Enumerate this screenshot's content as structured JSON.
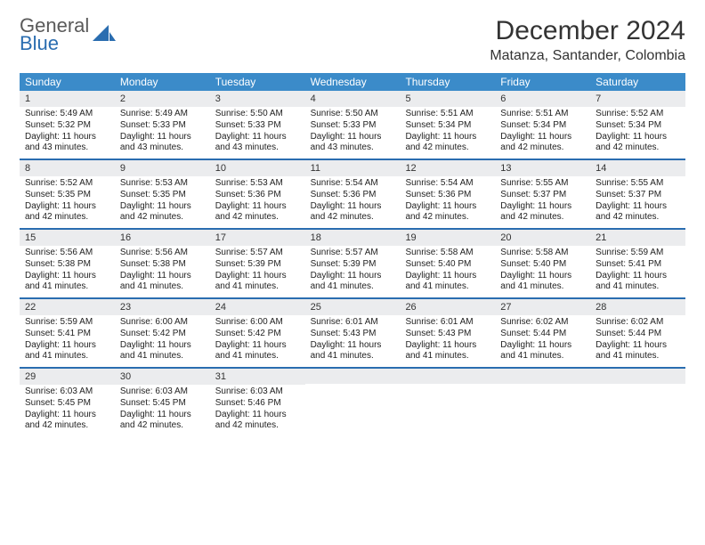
{
  "logo": {
    "line1": "General",
    "line2": "Blue",
    "icon_name": "sail-icon"
  },
  "title": "December 2024",
  "location": "Matanza, Santander, Colombia",
  "colors": {
    "header_bg": "#3b8bc9",
    "header_text": "#ffffff",
    "rule": "#2a6db0",
    "daynum_bg": "#ebecee",
    "page_bg": "#ffffff",
    "body_text": "#222222",
    "logo_gray": "#5a5a5a",
    "logo_blue": "#2a6db0"
  },
  "typography": {
    "month_title_pt": 30,
    "location_pt": 16,
    "dow_pt": 12,
    "daynum_pt": 11,
    "cell_pt": 10,
    "font_family": "Arial"
  },
  "layout": {
    "cols": 7,
    "rows": 5,
    "leading_blanks": 0,
    "trailing_blanks": 4
  },
  "dow": [
    "Sunday",
    "Monday",
    "Tuesday",
    "Wednesday",
    "Thursday",
    "Friday",
    "Saturday"
  ],
  "labels": {
    "sunrise": "Sunrise:",
    "sunset": "Sunset:",
    "daylight_prefix": "Daylight:"
  },
  "days": [
    {
      "n": 1,
      "rise": "5:49 AM",
      "set": "5:32 PM",
      "dl": "11 hours and 43 minutes."
    },
    {
      "n": 2,
      "rise": "5:49 AM",
      "set": "5:33 PM",
      "dl": "11 hours and 43 minutes."
    },
    {
      "n": 3,
      "rise": "5:50 AM",
      "set": "5:33 PM",
      "dl": "11 hours and 43 minutes."
    },
    {
      "n": 4,
      "rise": "5:50 AM",
      "set": "5:33 PM",
      "dl": "11 hours and 43 minutes."
    },
    {
      "n": 5,
      "rise": "5:51 AM",
      "set": "5:34 PM",
      "dl": "11 hours and 42 minutes."
    },
    {
      "n": 6,
      "rise": "5:51 AM",
      "set": "5:34 PM",
      "dl": "11 hours and 42 minutes."
    },
    {
      "n": 7,
      "rise": "5:52 AM",
      "set": "5:34 PM",
      "dl": "11 hours and 42 minutes."
    },
    {
      "n": 8,
      "rise": "5:52 AM",
      "set": "5:35 PM",
      "dl": "11 hours and 42 minutes."
    },
    {
      "n": 9,
      "rise": "5:53 AM",
      "set": "5:35 PM",
      "dl": "11 hours and 42 minutes."
    },
    {
      "n": 10,
      "rise": "5:53 AM",
      "set": "5:36 PM",
      "dl": "11 hours and 42 minutes."
    },
    {
      "n": 11,
      "rise": "5:54 AM",
      "set": "5:36 PM",
      "dl": "11 hours and 42 minutes."
    },
    {
      "n": 12,
      "rise": "5:54 AM",
      "set": "5:36 PM",
      "dl": "11 hours and 42 minutes."
    },
    {
      "n": 13,
      "rise": "5:55 AM",
      "set": "5:37 PM",
      "dl": "11 hours and 42 minutes."
    },
    {
      "n": 14,
      "rise": "5:55 AM",
      "set": "5:37 PM",
      "dl": "11 hours and 42 minutes."
    },
    {
      "n": 15,
      "rise": "5:56 AM",
      "set": "5:38 PM",
      "dl": "11 hours and 41 minutes."
    },
    {
      "n": 16,
      "rise": "5:56 AM",
      "set": "5:38 PM",
      "dl": "11 hours and 41 minutes."
    },
    {
      "n": 17,
      "rise": "5:57 AM",
      "set": "5:39 PM",
      "dl": "11 hours and 41 minutes."
    },
    {
      "n": 18,
      "rise": "5:57 AM",
      "set": "5:39 PM",
      "dl": "11 hours and 41 minutes."
    },
    {
      "n": 19,
      "rise": "5:58 AM",
      "set": "5:40 PM",
      "dl": "11 hours and 41 minutes."
    },
    {
      "n": 20,
      "rise": "5:58 AM",
      "set": "5:40 PM",
      "dl": "11 hours and 41 minutes."
    },
    {
      "n": 21,
      "rise": "5:59 AM",
      "set": "5:41 PM",
      "dl": "11 hours and 41 minutes."
    },
    {
      "n": 22,
      "rise": "5:59 AM",
      "set": "5:41 PM",
      "dl": "11 hours and 41 minutes."
    },
    {
      "n": 23,
      "rise": "6:00 AM",
      "set": "5:42 PM",
      "dl": "11 hours and 41 minutes."
    },
    {
      "n": 24,
      "rise": "6:00 AM",
      "set": "5:42 PM",
      "dl": "11 hours and 41 minutes."
    },
    {
      "n": 25,
      "rise": "6:01 AM",
      "set": "5:43 PM",
      "dl": "11 hours and 41 minutes."
    },
    {
      "n": 26,
      "rise": "6:01 AM",
      "set": "5:43 PM",
      "dl": "11 hours and 41 minutes."
    },
    {
      "n": 27,
      "rise": "6:02 AM",
      "set": "5:44 PM",
      "dl": "11 hours and 41 minutes."
    },
    {
      "n": 28,
      "rise": "6:02 AM",
      "set": "5:44 PM",
      "dl": "11 hours and 41 minutes."
    },
    {
      "n": 29,
      "rise": "6:03 AM",
      "set": "5:45 PM",
      "dl": "11 hours and 42 minutes."
    },
    {
      "n": 30,
      "rise": "6:03 AM",
      "set": "5:45 PM",
      "dl": "11 hours and 42 minutes."
    },
    {
      "n": 31,
      "rise": "6:03 AM",
      "set": "5:46 PM",
      "dl": "11 hours and 42 minutes."
    }
  ]
}
